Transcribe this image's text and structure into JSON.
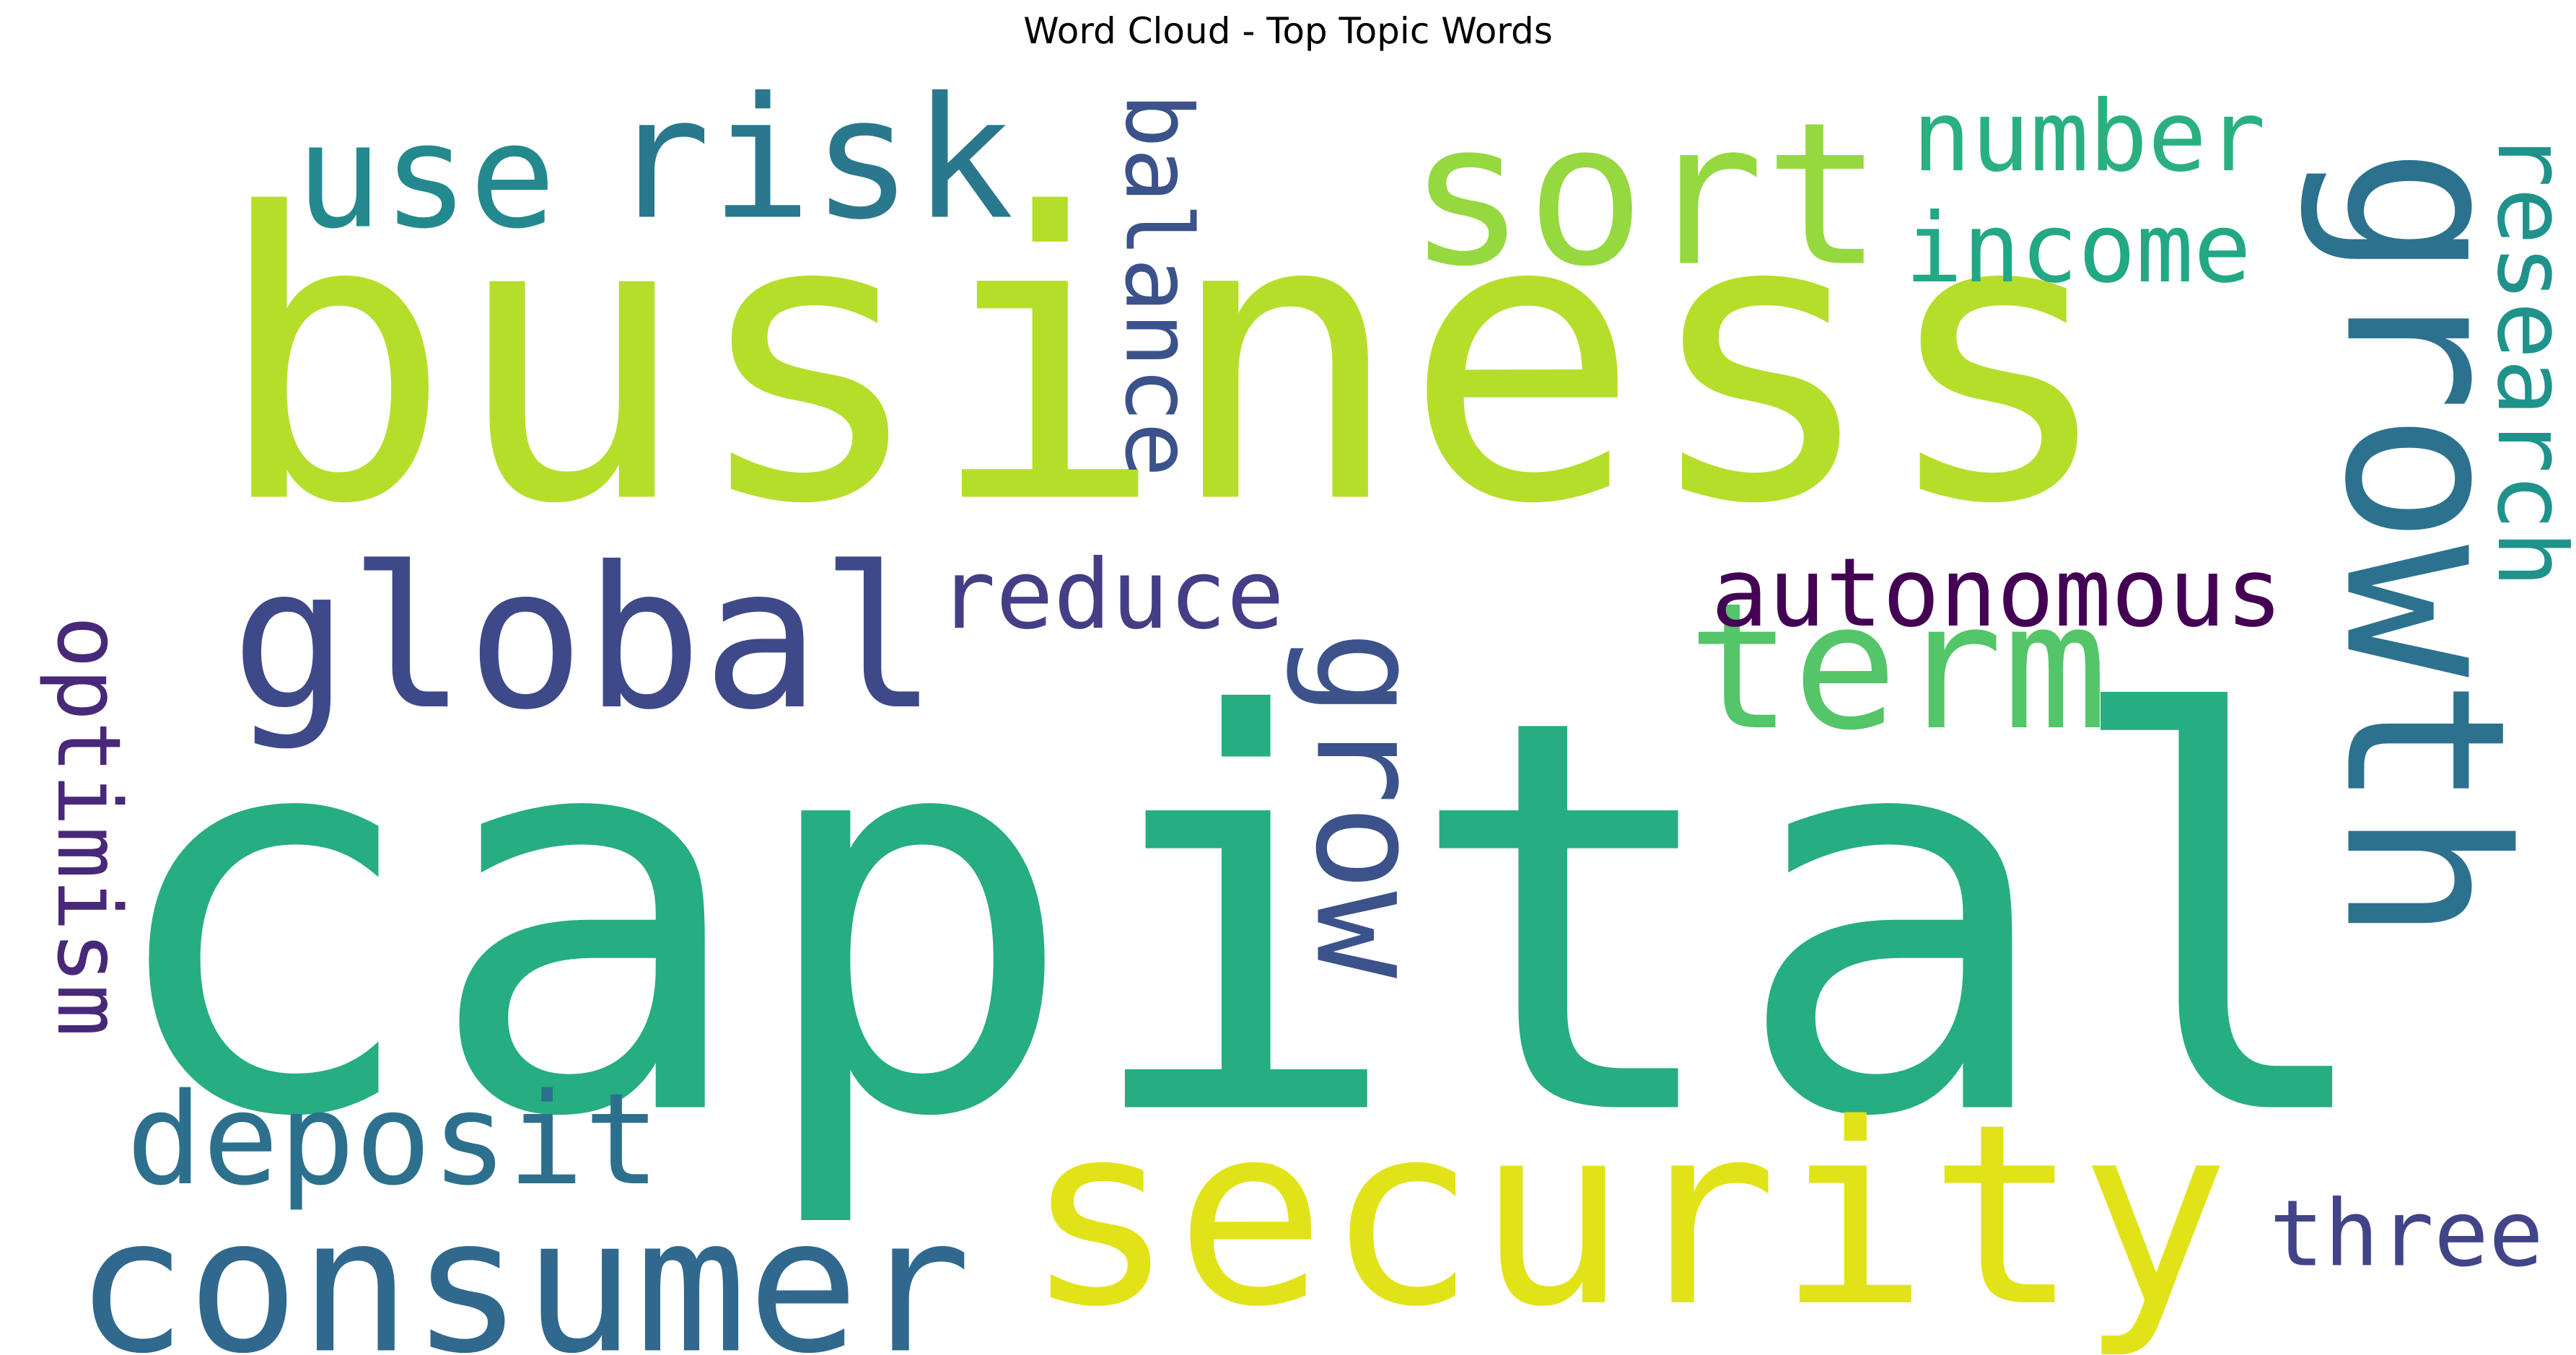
{
  "chart_data": {
    "type": "wordcloud",
    "title": "Word Cloud - Top Topic Words",
    "words": [
      {
        "text": "capital",
        "weight": 1.0,
        "color": "#26ad81",
        "orientation": "horizontal"
      },
      {
        "text": "business",
        "weight": 0.93,
        "color": "#b5de2b",
        "orientation": "horizontal"
      },
      {
        "text": "growth",
        "weight": 0.55,
        "color": "#2c728e",
        "orientation": "vertical"
      },
      {
        "text": "security",
        "weight": 0.52,
        "color": "#e1e318",
        "orientation": "horizontal"
      },
      {
        "text": "sort",
        "weight": 0.46,
        "color": "#95d840",
        "orientation": "horizontal"
      },
      {
        "text": "consumer",
        "weight": 0.45,
        "color": "#31688e",
        "orientation": "horizontal"
      },
      {
        "text": "global",
        "weight": 0.43,
        "color": "#3e4989",
        "orientation": "horizontal"
      },
      {
        "text": "term",
        "weight": 0.42,
        "color": "#54c568",
        "orientation": "horizontal"
      },
      {
        "text": "risk",
        "weight": 0.39,
        "color": "#2a788e",
        "orientation": "horizontal"
      },
      {
        "text": "use",
        "weight": 0.38,
        "color": "#23898e",
        "orientation": "horizontal"
      },
      {
        "text": "grow",
        "weight": 0.32,
        "color": "#3b528b",
        "orientation": "vertical"
      },
      {
        "text": "deposit",
        "weight": 0.3,
        "color": "#2d708e",
        "orientation": "horizontal"
      },
      {
        "text": "number",
        "weight": 0.24,
        "color": "#2ab07f",
        "orientation": "horizontal"
      },
      {
        "text": "autonomous",
        "weight": 0.23,
        "color": "#440154",
        "orientation": "horizontal"
      },
      {
        "text": "income",
        "weight": 0.23,
        "color": "#22a884",
        "orientation": "horizontal"
      },
      {
        "text": "balance",
        "weight": 0.22,
        "color": "#3b528b",
        "orientation": "vertical"
      },
      {
        "text": "research",
        "weight": 0.21,
        "color": "#20928c",
        "orientation": "vertical"
      },
      {
        "text": "optimism",
        "weight": 0.21,
        "color": "#482878",
        "orientation": "vertical"
      },
      {
        "text": "reduce",
        "weight": 0.2,
        "color": "#433e85",
        "orientation": "horizontal"
      },
      {
        "text": "three",
        "weight": 0.19,
        "color": "#414487",
        "orientation": "horizontal"
      }
    ]
  }
}
